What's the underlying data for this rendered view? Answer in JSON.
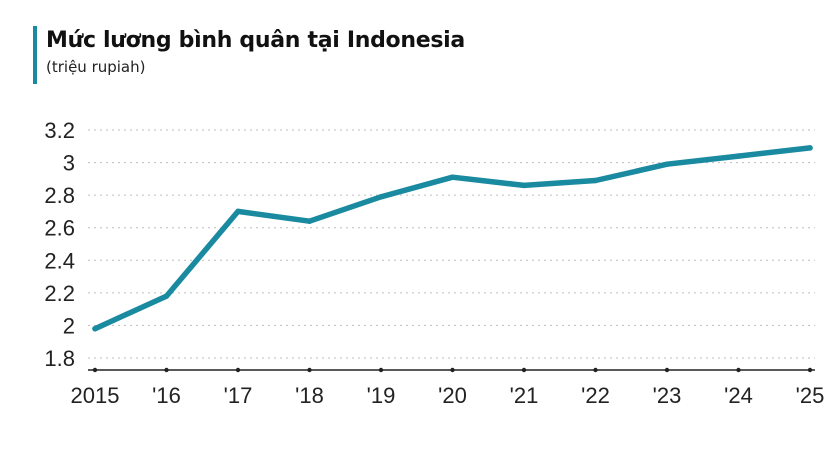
{
  "chart_data": {
    "type": "line",
    "title": "Mức lương bình quân tại Indonesia",
    "subtitle": "(triệu rupiah)",
    "xlabel": "",
    "ylabel": "",
    "x": [
      "2015",
      "'16",
      "'17",
      "'18",
      "'19",
      "'20",
      "'21",
      "'22",
      "'23",
      "'24",
      "'25"
    ],
    "series": [
      {
        "values": [
          1.98,
          2.18,
          2.7,
          2.64,
          2.79,
          2.91,
          2.86,
          2.89,
          2.99,
          3.04,
          3.09
        ]
      }
    ],
    "ylim": [
      1.8,
      3.2
    ],
    "yticks": [
      "1.8",
      "2",
      "2.2",
      "2.4",
      "2.6",
      "2.8",
      "3",
      "3.2"
    ],
    "grid": "horizontal-dotted",
    "line_color": "#1a8aa0"
  }
}
